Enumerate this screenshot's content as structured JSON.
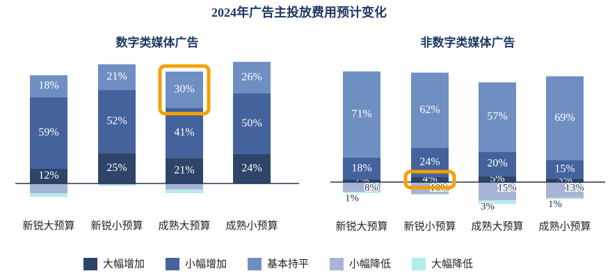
{
  "title": "2024年广告主投放费用预计变化",
  "legend_position": "bottom",
  "chart_data": [
    {
      "type": "bar",
      "stacked": true,
      "title": "数字类媒体广告",
      "categories": [
        "新锐大预算",
        "新锐小预算",
        "成熟大预算",
        "成熟小预算"
      ],
      "highlight": {
        "series": 2,
        "category": 2
      },
      "series": [
        {
          "name": "大幅增加",
          "color": "#2e4468",
          "values": [
            12,
            25,
            21,
            24
          ],
          "value_labels": [
            "12%",
            "25%",
            "21%",
            "24%"
          ]
        },
        {
          "name": "小幅增加",
          "color": "#44639c",
          "values": [
            59,
            52,
            41,
            50
          ],
          "value_labels": [
            "59%",
            "52%",
            "41%",
            "50%"
          ]
        },
        {
          "name": "基本持平",
          "color": "#6f8fc3",
          "values": [
            18,
            21,
            30,
            26
          ],
          "value_labels": [
            "18%",
            "21%",
            "30%",
            "26%"
          ]
        },
        {
          "name": "小幅降低",
          "color": "#a6b4d6",
          "below": true,
          "values": [
            8,
            1,
            5,
            0
          ]
        },
        {
          "name": "大幅降低",
          "color": "#b4ebeb",
          "below": true,
          "values": [
            3,
            1,
            3,
            0
          ]
        }
      ]
    },
    {
      "type": "bar",
      "stacked": true,
      "title": "非数字类媒体广告",
      "categories": [
        "新锐大预算",
        "新锐小预算",
        "成熟大预算",
        "成熟小预算"
      ],
      "highlight": {
        "series": 0,
        "category": 1
      },
      "series": [
        {
          "values": [
            2,
            4,
            5,
            3
          ],
          "value_labels": [
            "2%",
            "4%",
            "5%",
            "3%"
          ]
        },
        {
          "values": [
            18,
            24,
            20,
            15
          ],
          "value_labels": [
            "18%",
            "24%",
            "20%",
            "15%"
          ]
        },
        {
          "values": [
            71,
            62,
            57,
            69
          ],
          "value_labels": [
            "71%",
            "62%",
            "57%",
            "69%"
          ]
        },
        {
          "below": true,
          "values": [
            8,
            10,
            15,
            13
          ],
          "value_labels": [
            "8%",
            "10%",
            "15%",
            "13%"
          ]
        },
        {
          "below": true,
          "values": [
            1,
            0,
            3,
            1
          ],
          "value_labels": [
            "1%",
            null,
            "3%",
            "1%"
          ]
        }
      ]
    }
  ]
}
